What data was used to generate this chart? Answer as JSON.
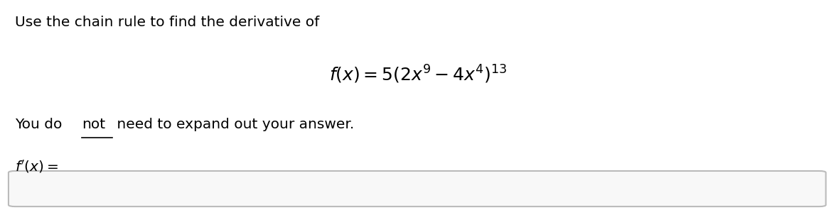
{
  "background_color": "#ffffff",
  "title_text": "Use the chain rule to find the derivative of",
  "formula": "$f(x) =5\\left(2x^9 - 4x^4\\right)^{13}$",
  "instruction_part1": "You do ",
  "instruction_not": "not",
  "instruction_part2": " need to expand out your answer.",
  "fprime_label": "$f'(x) =$",
  "title_fontsize": 14.5,
  "formula_fontsize": 18,
  "instruction_fontsize": 14.5,
  "fprime_fontsize": 14.5,
  "text_color": "#000000",
  "box_edge_color": "#bbbbbb",
  "box_face_color": "#f8f8f8"
}
